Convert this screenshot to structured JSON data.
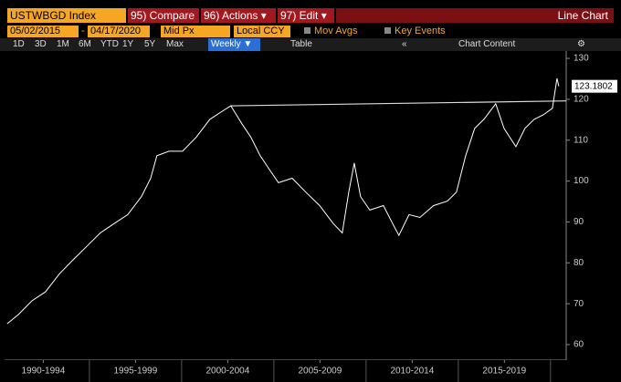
{
  "toolbar": {
    "ticker": "USTWBGD Index",
    "buttons": [
      "95) Compare",
      "96) Actions ▾",
      "97) Edit ▾"
    ],
    "view": "Line Chart"
  },
  "settings": {
    "start": "05/02/2015",
    "dash": "-",
    "end": "04/17/2020",
    "field": "Mid Px",
    "currency": "Local CCY",
    "options": [
      "Mov Avgs",
      "Key Events"
    ]
  },
  "ranges": [
    "1D",
    "3D",
    "1M",
    "6M",
    "YTD",
    "1Y",
    "5Y",
    "Max"
  ],
  "frequency": "Weekly ▼",
  "table": "Table",
  "collapse": "«",
  "chart_content": "Chart Content",
  "chart_data": {
    "type": "line",
    "color": "#ffffff",
    "x": [
      1990.54,
      1991.14,
      1991.88,
      1992.62,
      1993.37,
      1994.11,
      1994.85,
      1995.59,
      1996.34,
      1997.08,
      1997.82,
      1998.32,
      1998.66,
      1999.31,
      2000.05,
      2000.79,
      2001.53,
      2002.28,
      2002.67,
      2003.27,
      2003.76,
      2004.26,
      2004.75,
      2005.25,
      2005.99,
      2006.73,
      2007.48,
      2008.22,
      2008.71,
      2009.06,
      2009.36,
      2009.7,
      2010.2,
      2010.94,
      2011.44,
      2011.78,
      2012.33,
      2012.92,
      2013.66,
      2014.41,
      2014.9,
      2015.4,
      2015.89,
      2016.39,
      2017.03,
      2017.48,
      2018.12,
      2018.61,
      2019.11,
      2019.6,
      2020.1,
      2020.35,
      2020.45
    ],
    "values": [
      65.1,
      67.3,
      70.7,
      72.9,
      77.3,
      80.7,
      84,
      87.3,
      89.6,
      91.8,
      96.2,
      100.7,
      106.2,
      107.3,
      107.3,
      110.7,
      115.1,
      117.3,
      118.4,
      114,
      110.7,
      106.2,
      102.9,
      99.6,
      100.7,
      97.3,
      94,
      89.6,
      87.3,
      97.3,
      104.4,
      96.2,
      92.9,
      94,
      89.6,
      86.7,
      91.8,
      91.1,
      94,
      95.1,
      97.3,
      106.2,
      112.9,
      115.1,
      118.9,
      112.9,
      108.4,
      112.9,
      115.1,
      116.2,
      117.8,
      125.1,
      123.18
    ],
    "last_value": 123.1802,
    "reference_line": {
      "x": [
        2002.67,
        2020.85
      ],
      "values": [
        118.4,
        119.6
      ]
    },
    "xlim": [
      1990.4,
      2020.85
    ],
    "xticks": [
      {
        "value": 1992.5,
        "label": "1990-1994"
      },
      {
        "value": 1997.5,
        "label": "1995-1999"
      },
      {
        "value": 2002.5,
        "label": "2000-2004"
      },
      {
        "value": 2007.5,
        "label": "2005-2009"
      },
      {
        "value": 2012.5,
        "label": "2010-2014"
      },
      {
        "value": 2017.5,
        "label": "2015-2019"
      }
    ],
    "ylim": [
      56.2,
      131.8
    ],
    "yticks": [
      60,
      70,
      80,
      90,
      100,
      110,
      120,
      130
    ],
    "y_axis_side": "right"
  }
}
